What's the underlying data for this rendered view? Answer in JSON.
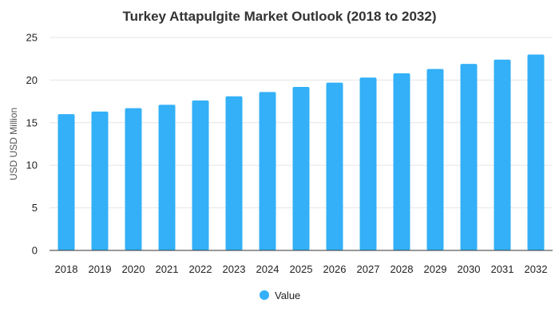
{
  "chart_data": {
    "type": "bar",
    "title": "Turkey Attapulgite Market Outlook (2018 to 2032)",
    "xlabel": "",
    "ylabel": "USD USD Million",
    "categories": [
      "2018",
      "2019",
      "2020",
      "2021",
      "2022",
      "2023",
      "2024",
      "2025",
      "2026",
      "2027",
      "2028",
      "2029",
      "2030",
      "2031",
      "2032"
    ],
    "series": [
      {
        "name": "Value",
        "color": "#33b0f7",
        "values": [
          16.0,
          16.3,
          16.7,
          17.1,
          17.6,
          18.1,
          18.6,
          19.2,
          19.7,
          20.3,
          20.8,
          21.3,
          21.9,
          22.4,
          23.0
        ]
      }
    ],
    "ylim": [
      0,
      25
    ],
    "yticks": [
      0,
      5,
      10,
      15,
      20,
      25
    ],
    "grid": true,
    "legend_position": "bottom-center"
  }
}
